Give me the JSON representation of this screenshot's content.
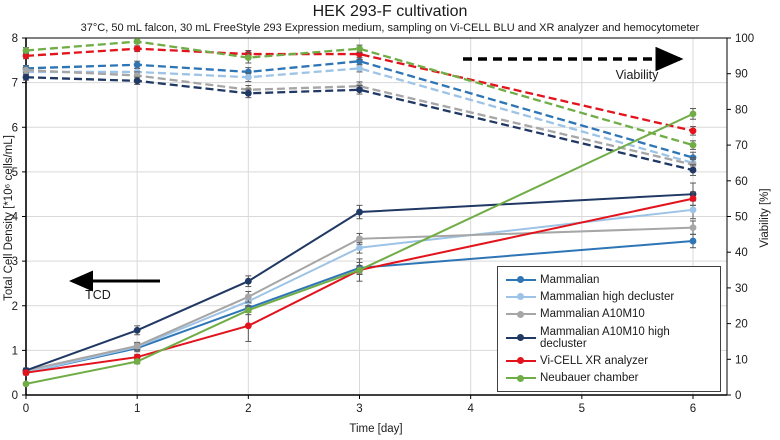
{
  "chart_data": {
    "type": "line",
    "title": "HEK 293-F cultivation",
    "subtitle": "37°C, 50 mL falcon, 30 mL FreeStyle 293 Expression medium, sampling on Vi-CELL BLU and XR analyzer and hemocytometer",
    "xlabel": "Time [day]",
    "ylabel_left": "Total Cell Density [*10⁶ cells/mL]",
    "ylabel_right": "Viability [%]",
    "x_ticks": [
      0,
      1,
      2,
      3,
      4,
      5,
      6
    ],
    "xlim": [
      0,
      6.3
    ],
    "y_left_ticks": [
      0,
      1,
      2,
      3,
      4,
      5,
      6,
      7,
      8
    ],
    "ylim_left": [
      0,
      8
    ],
    "y_right_ticks": [
      0,
      10,
      20,
      30,
      40,
      50,
      60,
      70,
      80,
      90,
      100
    ],
    "ylim_right": [
      0,
      100
    ],
    "grid": true,
    "legend_position": "lower right",
    "sample_days": [
      0,
      1,
      2,
      3,
      6
    ],
    "series": [
      {
        "name": "Mammalian",
        "color": "#2e75b6",
        "tcd": [
          0.5,
          1.05,
          1.95,
          2.85,
          3.45
        ],
        "tcd_err": [
          0.05,
          0.08,
          0.1,
          0.12,
          0.15
        ],
        "viability": [
          91.5,
          92.5,
          90.5,
          93.5,
          66.5
        ],
        "viability_err": [
          0.8,
          1.0,
          1.2,
          1.0,
          1.5
        ]
      },
      {
        "name": "Mammalian high decluster",
        "color": "#9dc3e6",
        "tcd": [
          0.5,
          1.08,
          2.1,
          3.3,
          4.15
        ],
        "tcd_err": [
          0.05,
          0.08,
          0.1,
          0.12,
          0.2
        ],
        "viability": [
          90.5,
          90.5,
          89.0,
          91.5,
          65.0
        ],
        "viability_err": [
          0.8,
          1.0,
          1.2,
          1.0,
          1.5
        ]
      },
      {
        "name": "Mammalian A10M10",
        "color": "#a6a6a6",
        "tcd": [
          0.55,
          1.1,
          2.2,
          3.5,
          3.75
        ],
        "tcd_err": [
          0.05,
          0.08,
          0.12,
          0.12,
          0.15
        ],
        "viability": [
          91.0,
          89.5,
          85.5,
          86.5,
          64.5
        ],
        "viability_err": [
          0.8,
          1.0,
          1.2,
          1.2,
          1.5
        ]
      },
      {
        "name": "Mammalian A10M10 high decluster",
        "color": "#203864",
        "tcd": [
          0.55,
          1.45,
          2.55,
          4.1,
          4.5
        ],
        "tcd_err": [
          0.05,
          0.1,
          0.12,
          0.15,
          0.25
        ],
        "viability": [
          89.0,
          88.0,
          84.5,
          85.5,
          63.0
        ],
        "viability_err": [
          0.8,
          1.0,
          1.2,
          1.2,
          1.5
        ]
      },
      {
        "name": "Vi-CELL XR analyzer",
        "color": "#e2131c",
        "tcd": [
          0.5,
          0.85,
          1.55,
          2.8,
          4.4
        ],
        "tcd_err": [
          0.04,
          0.06,
          0.35,
          0.1,
          0.15
        ],
        "viability": [
          95.0,
          97.0,
          95.5,
          95.5,
          74.0
        ],
        "viability_err": [
          0.8,
          0.8,
          1.0,
          1.5,
          1.2
        ]
      },
      {
        "name": "Neubauer chamber",
        "color": "#70ad47",
        "tcd": [
          0.25,
          0.75,
          1.9,
          2.8,
          6.3
        ],
        "tcd_err": [
          0.03,
          0.05,
          0.1,
          0.25,
          0.12
        ],
        "viability": [
          96.5,
          99.0,
          94.5,
          97.0,
          70.0
        ],
        "viability_err": [
          0.8,
          0.5,
          1.5,
          1.0,
          1.2
        ]
      }
    ],
    "annotations": {
      "tcd_label": "TCD",
      "viability_label": "Viability"
    }
  }
}
